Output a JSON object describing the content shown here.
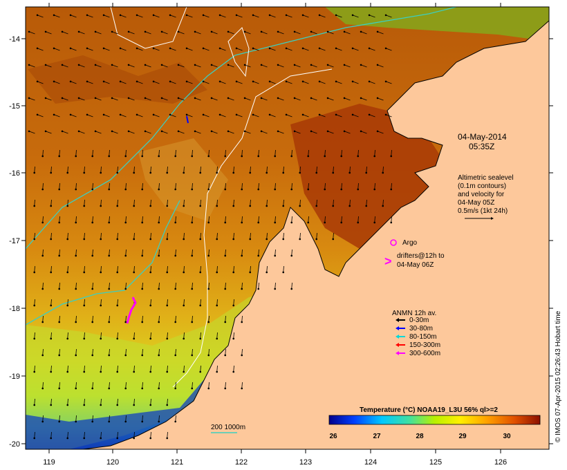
{
  "map": {
    "timestamp_date": "04-May-2014",
    "timestamp_time": "05:35Z",
    "lon_ticks": [
      "119",
      "120",
      "121",
      "122",
      "123",
      "124",
      "125",
      "126"
    ],
    "lat_ticks": [
      "-14",
      "-15",
      "-16",
      "-17",
      "-18",
      "-19",
      "-20"
    ],
    "altimetry_note": [
      "Altimetric sealevel",
      "(0.1m contours)",
      "and velocity for",
      "04-May 05Z",
      "0.5m/s (1kt 24h)"
    ],
    "argo_label": "Argo",
    "drifters_label": [
      "drifters@12h to",
      "04-May 06Z"
    ],
    "anmn_title": "ANMN 12h av.",
    "anmn_legend": [
      {
        "label": "0-30m",
        "color": "#000000"
      },
      {
        "label": "30-80m",
        "color": "#0000ff"
      },
      {
        "label": "80-150m",
        "color": "#00d8d8"
      },
      {
        "label": "150-300m",
        "color": "#ff0000"
      },
      {
        "label": "300-600m",
        "color": "#ff00ff"
      }
    ],
    "isobath_label": "200  1000m",
    "colorbar_title": "Temperature (°C) NOAA19_L3U 56% ql>=2",
    "colorbar_ticks": [
      "26",
      "27",
      "28",
      "29",
      "30"
    ],
    "credit": "© IMOS 07-Apr-2015 02:26:43 Hobart time",
    "colors": {
      "land": "#fdc89b",
      "warm_sea": "#c8680a",
      "hot_sea": "#a83a06",
      "isobath_200": "#3ccfc0",
      "isobath_1000": "#ffffff",
      "argo": "#ff00ff"
    }
  }
}
